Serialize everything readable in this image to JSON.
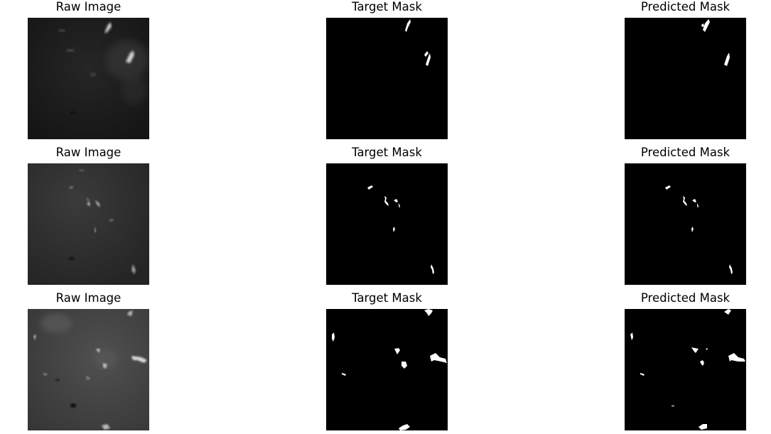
{
  "figure": {
    "rows": [
      {
        "panels": [
          {
            "title": "Raw Image",
            "kind": "raw",
            "background": "#1b1b1b"
          },
          {
            "title": "Target Mask",
            "kind": "mask",
            "background": "#000000"
          },
          {
            "title": "Predicted Mask",
            "kind": "mask",
            "background": "#000000"
          }
        ]
      },
      {
        "panels": [
          {
            "title": "Raw Image",
            "kind": "raw",
            "background": "#2f2f2f"
          },
          {
            "title": "Target Mask",
            "kind": "mask",
            "background": "#000000"
          },
          {
            "title": "Predicted Mask",
            "kind": "mask",
            "background": "#000000"
          }
        ]
      },
      {
        "panels": [
          {
            "title": "Raw Image",
            "kind": "raw",
            "background": "#444444"
          },
          {
            "title": "Target Mask",
            "kind": "mask",
            "background": "#000000"
          },
          {
            "title": "Predicted Mask",
            "kind": "mask",
            "background": "#000000"
          }
        ]
      }
    ]
  }
}
